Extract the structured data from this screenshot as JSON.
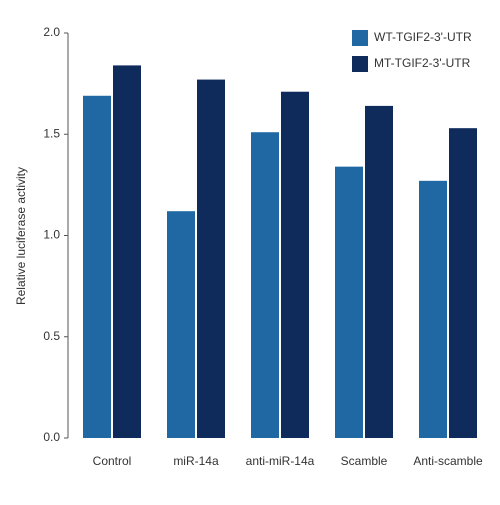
{
  "chart_data": {
    "type": "bar",
    "y_label": "Relative luciferase activity",
    "categories": [
      "Control",
      "miR-14a",
      "anti-miR-14a",
      "Scamble",
      "Anti-scamble"
    ],
    "series": [
      {
        "name": "WT-TGIF2-3'-UTR",
        "color": "#1f68a3",
        "values": [
          1.69,
          1.12,
          1.51,
          1.34,
          1.27
        ]
      },
      {
        "name": "MT-TGIF2-3'-UTR",
        "color": "#0e2b5c",
        "values": [
          1.84,
          1.77,
          1.71,
          1.64,
          1.53
        ]
      }
    ],
    "ylim": [
      0,
      2
    ],
    "yticks": [
      {
        "value": 0,
        "label": "0.0"
      },
      {
        "value": 0.5,
        "label": "0.5"
      },
      {
        "value": 1,
        "label": "1.0"
      },
      {
        "value": 1.5,
        "label": "1.5"
      },
      {
        "value": 2,
        "label": "2.0"
      }
    ],
    "legend": "top-right"
  }
}
